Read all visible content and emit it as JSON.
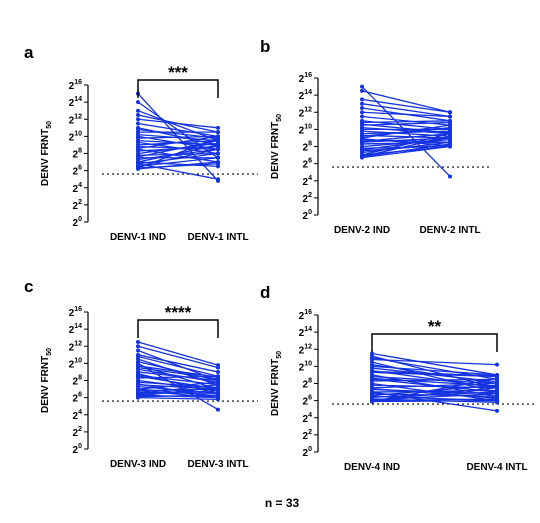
{
  "footer": "n = 33",
  "chart_data": [
    {
      "type": "line",
      "panel": "a",
      "ylabel": "DENV FRNT50",
      "ylabel_base": "DENV FRNT",
      "ylabel_sub": "50",
      "categories": [
        "DENV-1 IND",
        "DENV-1 INTL"
      ],
      "yscale": "log2",
      "ylim": [
        0,
        16
      ],
      "yticks": [
        0,
        2,
        4,
        6,
        8,
        10,
        12,
        14,
        16
      ],
      "tick_base": "2",
      "threshold": 5.6,
      "significance": "***",
      "line_color": "#1533e0",
      "series": [
        [
          15.0,
          4.8
        ],
        [
          14.0,
          7.5
        ],
        [
          13.0,
          9.5
        ],
        [
          12.5,
          10.5
        ],
        [
          12.0,
          11.0
        ],
        [
          11.5,
          10.0
        ],
        [
          11.0,
          9.0
        ],
        [
          10.8,
          9.8
        ],
        [
          10.5,
          10.5
        ],
        [
          10.2,
          9.5
        ],
        [
          10.0,
          8.5
        ],
        [
          9.8,
          10.0
        ],
        [
          9.5,
          9.0
        ],
        [
          9.3,
          8.0
        ],
        [
          9.0,
          9.5
        ],
        [
          8.8,
          8.5
        ],
        [
          8.6,
          10.0
        ],
        [
          8.5,
          7.0
        ],
        [
          8.3,
          8.8
        ],
        [
          8.0,
          9.2
        ],
        [
          7.8,
          8.0
        ],
        [
          7.6,
          9.5
        ],
        [
          7.5,
          7.5
        ],
        [
          7.3,
          8.5
        ],
        [
          7.0,
          9.0
        ],
        [
          7.0,
          6.5
        ],
        [
          6.8,
          8.0
        ],
        [
          6.8,
          5.0
        ],
        [
          6.5,
          7.5
        ],
        [
          6.5,
          8.5
        ],
        [
          6.3,
          6.8
        ],
        [
          6.3,
          9.8
        ],
        [
          6.2,
          7.0
        ]
      ]
    },
    {
      "type": "line",
      "panel": "b",
      "ylabel": "DENV FRNT50",
      "ylabel_base": "DENV FRNT",
      "ylabel_sub": "50",
      "categories": [
        "DENV-2 IND",
        "DENV-2 INTL"
      ],
      "yscale": "log2",
      "ylim": [
        0,
        16
      ],
      "yticks": [
        0,
        2,
        4,
        6,
        8,
        10,
        12,
        14,
        16
      ],
      "tick_base": "2",
      "threshold": 5.6,
      "significance": "",
      "line_color": "#1533e0",
      "series": [
        [
          15.0,
          4.5
        ],
        [
          14.5,
          12.0
        ],
        [
          13.5,
          12.0
        ],
        [
          13.0,
          11.5
        ],
        [
          12.5,
          11.0
        ],
        [
          12.0,
          11.5
        ],
        [
          11.5,
          10.5
        ],
        [
          11.0,
          10.0
        ],
        [
          10.8,
          11.0
        ],
        [
          10.5,
          10.8
        ],
        [
          10.2,
          9.5
        ],
        [
          10.0,
          10.0
        ],
        [
          9.8,
          9.2
        ],
        [
          9.5,
          9.8
        ],
        [
          9.3,
          9.0
        ],
        [
          9.0,
          10.5
        ],
        [
          8.8,
          8.5
        ],
        [
          8.6,
          9.5
        ],
        [
          8.5,
          9.0
        ],
        [
          8.3,
          8.5
        ],
        [
          8.0,
          8.8
        ],
        [
          7.8,
          8.0
        ],
        [
          7.6,
          9.0
        ],
        [
          7.5,
          8.2
        ],
        [
          7.3,
          8.5
        ],
        [
          7.0,
          8.0
        ],
        [
          7.0,
          9.5
        ],
        [
          6.8,
          8.3
        ],
        [
          6.8,
          9.2
        ],
        [
          6.7,
          8.0
        ],
        [
          9.2,
          10.2
        ],
        [
          10.6,
          9.6
        ],
        [
          8.9,
          8.1
        ]
      ]
    },
    {
      "type": "line",
      "panel": "c",
      "ylabel": "DENV FRNT50",
      "ylabel_base": "DENV FRNT",
      "ylabel_sub": "50",
      "categories": [
        "DENV-3 IND",
        "DENV-3 INTL"
      ],
      "yscale": "log2",
      "ylim": [
        0,
        16
      ],
      "yticks": [
        0,
        2,
        4,
        6,
        8,
        10,
        12,
        14,
        16
      ],
      "tick_base": "2",
      "threshold": 5.6,
      "significance": "****",
      "line_color": "#1533e0",
      "series": [
        [
          12.5,
          9.8
        ],
        [
          12.0,
          9.5
        ],
        [
          11.5,
          8.0
        ],
        [
          11.0,
          9.0
        ],
        [
          10.8,
          8.5
        ],
        [
          10.5,
          7.5
        ],
        [
          10.2,
          8.0
        ],
        [
          10.0,
          4.6
        ],
        [
          9.8,
          7.0
        ],
        [
          9.5,
          8.2
        ],
        [
          9.3,
          7.8
        ],
        [
          9.0,
          8.0
        ],
        [
          8.8,
          6.5
        ],
        [
          8.6,
          7.5
        ],
        [
          8.5,
          7.0
        ],
        [
          8.3,
          8.5
        ],
        [
          8.0,
          6.8
        ],
        [
          7.8,
          7.2
        ],
        [
          7.6,
          6.0
        ],
        [
          7.5,
          7.0
        ],
        [
          7.3,
          6.5
        ],
        [
          7.0,
          7.8
        ],
        [
          7.0,
          6.2
        ],
        [
          6.8,
          7.0
        ],
        [
          6.8,
          6.0
        ],
        [
          6.6,
          6.5
        ],
        [
          6.5,
          7.5
        ],
        [
          6.4,
          6.8
        ],
        [
          6.3,
          6.0
        ],
        [
          6.2,
          7.2
        ],
        [
          6.1,
          6.3
        ],
        [
          6.0,
          5.8
        ],
        [
          9.7,
          8.4
        ]
      ]
    },
    {
      "type": "line",
      "panel": "d",
      "ylabel": "DENV FRNT50",
      "ylabel_base": "DENV FRNT",
      "ylabel_sub": "50",
      "categories": [
        "DENV-4 IND",
        "DENV-4 INTL"
      ],
      "yscale": "log2",
      "ylim": [
        0,
        16
      ],
      "yticks": [
        0,
        2,
        4,
        6,
        8,
        10,
        12,
        14,
        16
      ],
      "tick_base": "2",
      "threshold": 5.6,
      "significance": "**",
      "line_color": "#1533e0",
      "series": [
        [
          11.5,
          9.0
        ],
        [
          11.2,
          7.5
        ],
        [
          11.0,
          8.5
        ],
        [
          10.8,
          10.2
        ],
        [
          10.5,
          7.0
        ],
        [
          10.2,
          8.0
        ],
        [
          10.0,
          9.0
        ],
        [
          9.8,
          8.2
        ],
        [
          9.5,
          7.5
        ],
        [
          9.3,
          8.8
        ],
        [
          9.0,
          6.5
        ],
        [
          8.8,
          8.0
        ],
        [
          8.5,
          7.0
        ],
        [
          8.3,
          8.5
        ],
        [
          8.0,
          6.0
        ],
        [
          7.8,
          7.5
        ],
        [
          7.5,
          8.0
        ],
        [
          7.3,
          6.8
        ],
        [
          7.0,
          7.2
        ],
        [
          7.0,
          4.8
        ],
        [
          6.8,
          6.5
        ],
        [
          6.6,
          7.8
        ],
        [
          6.5,
          6.0
        ],
        [
          6.4,
          7.0
        ],
        [
          6.2,
          5.8
        ],
        [
          6.1,
          6.8
        ],
        [
          6.0,
          6.2
        ],
        [
          6.0,
          7.5
        ],
        [
          5.9,
          6.0
        ],
        [
          5.9,
          8.6
        ],
        [
          8.6,
          7.7
        ],
        [
          7.4,
          6.3
        ],
        [
          9.4,
          8.9
        ]
      ]
    }
  ]
}
